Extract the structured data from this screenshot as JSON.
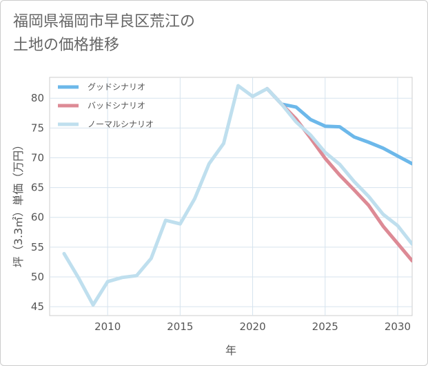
{
  "title_lines": [
    "福岡県福岡市早良区荒江の",
    "土地の価格推移"
  ],
  "chart_data": {
    "type": "line",
    "xlabel": "年",
    "ylabel": "坪（3.3㎡）単価（万円）",
    "xlim": [
      2006,
      2031
    ],
    "ylim": [
      43.5,
      83.5
    ],
    "xticks": [
      2010,
      2015,
      2020,
      2025,
      2030
    ],
    "yticks": [
      45,
      50,
      55,
      60,
      65,
      70,
      75,
      80
    ],
    "legend_position": "top-left",
    "series": [
      {
        "name": "グッドシナリオ",
        "color": "#6cb8ea",
        "x": [
          2021,
          2022,
          2023,
          2024,
          2025,
          2026,
          2027,
          2028,
          2029,
          2030,
          2031
        ],
        "y": [
          81.6,
          79.0,
          78.5,
          76.4,
          75.3,
          75.2,
          73.5,
          72.6,
          71.6,
          70.3,
          69.0
        ]
      },
      {
        "name": "バッドシナリオ",
        "color": "#dd8a95",
        "x": [
          2021,
          2022,
          2023,
          2024,
          2025,
          2026,
          2027,
          2028,
          2029,
          2030,
          2031
        ],
        "y": [
          81.6,
          79.0,
          76.5,
          73.3,
          69.9,
          67.1,
          64.6,
          62.0,
          58.5,
          55.6,
          52.7
        ]
      },
      {
        "name": "ノーマルシナリオ",
        "color": "#bfdfee",
        "x": [
          2007,
          2008,
          2009,
          2010,
          2011,
          2012,
          2013,
          2014,
          2015,
          2016,
          2017,
          2018,
          2019,
          2020,
          2021,
          2022,
          2023,
          2024,
          2025,
          2026,
          2027,
          2028,
          2029,
          2030,
          2031
        ],
        "y": [
          53.9,
          49.8,
          45.3,
          49.2,
          49.9,
          50.2,
          53.1,
          59.5,
          58.9,
          63.1,
          69.0,
          72.4,
          82.1,
          80.3,
          81.6,
          79.0,
          76.0,
          73.8,
          70.9,
          68.9,
          66.0,
          63.5,
          60.5,
          58.6,
          55.5
        ]
      }
    ]
  }
}
